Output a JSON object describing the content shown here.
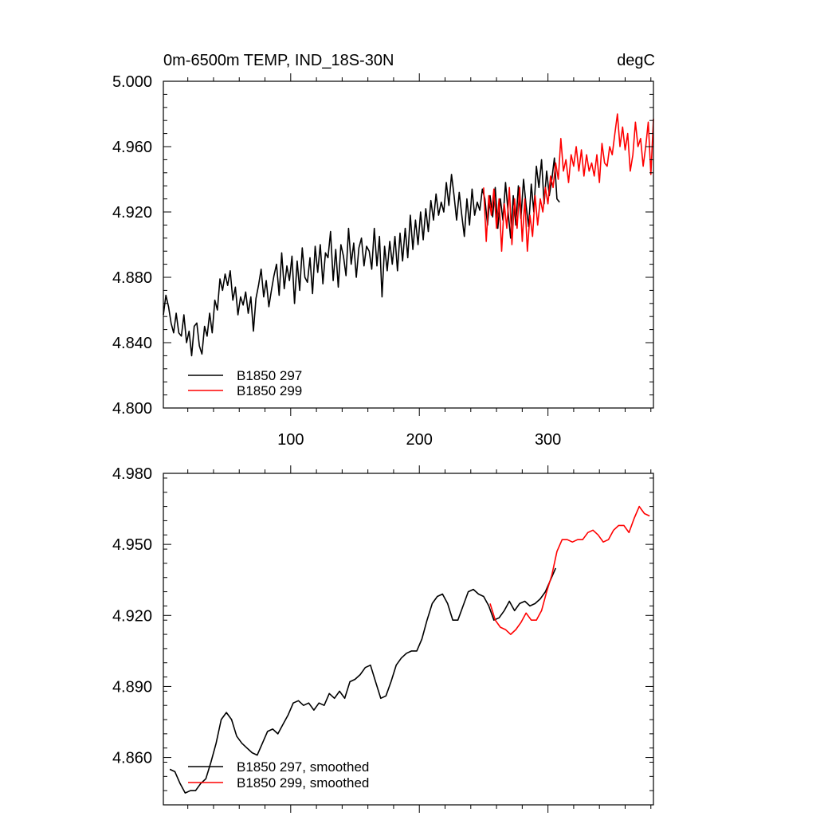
{
  "colors": {
    "run297": "#000000",
    "run299": "#ff0000"
  },
  "chart_data": [
    {
      "type": "line",
      "title": "0m-6500m TEMP, IND_18S-30N",
      "units": "degC",
      "xlim": [
        1,
        382
      ],
      "ylim": [
        4.8,
        5.0
      ],
      "xticks": [
        100,
        200,
        300
      ],
      "xtick_labels": [
        "100",
        "200",
        "300"
      ],
      "yticks": [
        4.8,
        4.84,
        4.88,
        4.92,
        4.96,
        5.0
      ],
      "ytick_labels": [
        "4.800",
        "4.840",
        "4.880",
        "4.920",
        "4.960",
        "5.000"
      ],
      "legend": {
        "position": "bottom-left",
        "entries": [
          "B1850 297",
          "B1850 299"
        ]
      },
      "series": [
        {
          "name": "B1850 297",
          "color": "#000000",
          "x": [
            1,
            3,
            5,
            7,
            9,
            11,
            13,
            15,
            17,
            19,
            21,
            23,
            25,
            27,
            29,
            31,
            33,
            35,
            37,
            39,
            41,
            43,
            45,
            47,
            49,
            51,
            53,
            55,
            57,
            59,
            61,
            63,
            65,
            67,
            69,
            71,
            73,
            75,
            77,
            79,
            81,
            83,
            85,
            87,
            89,
            91,
            93,
            95,
            97,
            99,
            101,
            103,
            105,
            107,
            109,
            111,
            113,
            115,
            117,
            119,
            121,
            123,
            125,
            127,
            129,
            131,
            133,
            135,
            137,
            139,
            141,
            143,
            145,
            147,
            149,
            151,
            153,
            155,
            157,
            159,
            161,
            163,
            165,
            167,
            169,
            171,
            173,
            175,
            177,
            179,
            181,
            183,
            185,
            187,
            189,
            191,
            193,
            195,
            197,
            199,
            201,
            203,
            205,
            207,
            209,
            211,
            213,
            215,
            217,
            219,
            221,
            223,
            225,
            227,
            229,
            231,
            233,
            235,
            237,
            239,
            241,
            243,
            245,
            247,
            249,
            251,
            253,
            255,
            257,
            259,
            261,
            263,
            265,
            267,
            269,
            271,
            273,
            275,
            277,
            279,
            281,
            283,
            285,
            287,
            289,
            291,
            293,
            295,
            297,
            299,
            301,
            303,
            305,
            307,
            309
          ],
          "values": [
            4.857,
            4.869,
            4.862,
            4.852,
            4.846,
            4.858,
            4.846,
            4.844,
            4.857,
            4.84,
            4.847,
            4.832,
            4.85,
            4.852,
            4.838,
            4.833,
            4.85,
            4.844,
            4.858,
            4.846,
            4.866,
            4.86,
            4.879,
            4.872,
            4.882,
            4.875,
            4.884,
            4.866,
            4.874,
            4.857,
            4.868,
            4.863,
            4.871,
            4.858,
            4.868,
            4.847,
            4.867,
            4.875,
            4.885,
            4.868,
            4.878,
            4.862,
            4.872,
            4.881,
            4.888,
            4.869,
            4.895,
            4.873,
            4.887,
            4.878,
            4.893,
            4.864,
            4.89,
            4.872,
            4.898,
            4.88,
            4.877,
            4.892,
            4.87,
            4.899,
            4.883,
            4.9,
            4.876,
            4.895,
            4.892,
            4.908,
            4.878,
            4.897,
            4.874,
            4.9,
            4.893,
            4.881,
            4.91,
            4.888,
            4.901,
            4.88,
            4.898,
            4.904,
            4.887,
            4.899,
            4.896,
            4.885,
            4.91,
            4.887,
            4.905,
            4.868,
            4.899,
            4.884,
            4.902,
            4.888,
            4.905,
            4.884,
            4.907,
            4.89,
            4.91,
            4.892,
            4.918,
            4.897,
            4.915,
            4.9,
            4.92,
            4.903,
            4.922,
            4.908,
            4.927,
            4.915,
            4.931,
            4.918,
            4.926,
            4.92,
            4.938,
            4.924,
            4.943,
            4.93,
            4.915,
            4.932,
            4.918,
            4.905,
            4.928,
            4.912,
            4.934,
            4.918,
            4.926,
            4.921,
            4.934,
            4.928,
            4.912,
            4.93,
            4.917,
            4.935,
            4.91,
            4.928,
            4.915,
            4.938,
            4.92,
            4.904,
            4.93,
            4.912,
            4.936,
            4.916,
            4.94,
            4.924,
            4.911,
            4.937,
            4.92,
            4.948,
            4.935,
            4.952,
            4.925,
            4.945,
            4.93,
            4.94,
            4.953,
            4.928,
            4.926
          ],
          "values_note": ""
        },
        {
          "name": "B1850 299",
          "color": "#ff0000",
          "x": [
            250,
            252,
            254,
            256,
            258,
            260,
            262,
            264,
            266,
            268,
            270,
            272,
            274,
            276,
            278,
            280,
            282,
            284,
            286,
            288,
            290,
            292,
            294,
            296,
            298,
            300,
            302,
            304,
            306,
            308,
            310,
            312,
            314,
            316,
            318,
            320,
            322,
            324,
            326,
            328,
            330,
            332,
            334,
            336,
            338,
            340,
            342,
            344,
            346,
            348,
            350,
            352,
            354,
            356,
            358,
            360,
            362,
            364,
            366,
            368,
            370,
            372,
            374,
            376,
            378,
            380,
            382
          ],
          "values": [
            4.935,
            4.902,
            4.93,
            4.918,
            4.934,
            4.91,
            4.928,
            4.896,
            4.925,
            4.91,
            4.935,
            4.9,
            4.928,
            4.91,
            4.935,
            4.902,
            4.928,
            4.896,
            4.918,
            4.905,
            4.93,
            4.912,
            4.928,
            4.92,
            4.935,
            4.925,
            4.942,
            4.935,
            4.95,
            4.94,
            4.965,
            4.945,
            4.952,
            4.938,
            4.955,
            4.948,
            4.96,
            4.945,
            4.958,
            4.942,
            4.955,
            4.945,
            4.95,
            4.942,
            4.955,
            4.938,
            4.962,
            4.95,
            4.948,
            4.96,
            4.955,
            4.968,
            4.98,
            4.96,
            4.972,
            4.958,
            4.968,
            4.945,
            4.955,
            4.975,
            4.96,
            4.965,
            4.948,
            4.96,
            4.975,
            4.943,
            4.977
          ],
          "values_note": ""
        }
      ]
    },
    {
      "type": "line",
      "title": "",
      "xlim": [
        1,
        382
      ],
      "ylim": [
        4.84,
        4.98
      ],
      "xticks": [
        100,
        200,
        300
      ],
      "yticks": [
        4.86,
        4.89,
        4.92,
        4.95,
        4.98
      ],
      "ytick_labels": [
        "4.860",
        "4.890",
        "4.920",
        "4.950",
        "4.980"
      ],
      "legend": {
        "position": "bottom-left",
        "entries": [
          "B1850 297, smoothed",
          "B1850 299, smoothed"
        ]
      },
      "series": [
        {
          "name": "B1850 297, smoothed",
          "color": "#000000",
          "x": [
            6,
            10,
            14,
            18,
            22,
            26,
            30,
            34,
            38,
            42,
            46,
            50,
            54,
            58,
            62,
            66,
            70,
            74,
            78,
            82,
            86,
            90,
            94,
            98,
            102,
            106,
            110,
            114,
            118,
            122,
            126,
            130,
            134,
            138,
            142,
            146,
            150,
            154,
            158,
            162,
            166,
            170,
            174,
            178,
            182,
            186,
            190,
            194,
            198,
            202,
            206,
            210,
            214,
            218,
            222,
            226,
            230,
            234,
            238,
            242,
            246,
            250,
            254,
            258,
            262,
            266,
            270,
            274,
            278,
            282,
            286,
            290,
            294,
            298,
            302,
            306
          ],
          "values": [
            4.855,
            4.854,
            4.849,
            4.845,
            4.846,
            4.846,
            4.849,
            4.851,
            4.858,
            4.866,
            4.876,
            4.879,
            4.876,
            4.869,
            4.866,
            4.864,
            4.862,
            4.861,
            4.866,
            4.871,
            4.872,
            4.87,
            4.874,
            4.878,
            4.883,
            4.884,
            4.882,
            4.883,
            4.88,
            4.883,
            4.882,
            4.887,
            4.885,
            4.888,
            4.885,
            4.892,
            4.893,
            4.895,
            4.898,
            4.899,
            4.892,
            4.885,
            4.886,
            4.892,
            4.899,
            4.902,
            4.904,
            4.905,
            4.905,
            4.91,
            4.918,
            4.925,
            4.928,
            4.929,
            4.925,
            4.918,
            4.918,
            4.924,
            4.93,
            4.931,
            4.929,
            4.928,
            4.924,
            4.918,
            4.919,
            4.922,
            4.926,
            4.922,
            4.925,
            4.926,
            4.924,
            4.925,
            4.927,
            4.93,
            4.935,
            4.94
          ],
          "values_note": ""
        },
        {
          "name": "B1850 299, smoothed",
          "color": "#ff0000",
          "x": [
            255,
            259,
            263,
            267,
            271,
            275,
            279,
            283,
            287,
            291,
            295,
            299,
            303,
            307,
            311,
            315,
            319,
            323,
            327,
            331,
            335,
            339,
            343,
            347,
            351,
            355,
            359,
            363,
            367,
            371,
            375,
            379
          ],
          "values": [
            4.925,
            4.918,
            4.915,
            4.914,
            4.912,
            4.914,
            4.917,
            4.921,
            4.918,
            4.918,
            4.922,
            4.93,
            4.937,
            4.947,
            4.952,
            4.952,
            4.951,
            4.952,
            4.952,
            4.955,
            4.956,
            4.954,
            4.951,
            4.952,
            4.956,
            4.958,
            4.958,
            4.955,
            4.961,
            4.966,
            4.963,
            4.962
          ],
          "values_note": ""
        }
      ]
    }
  ]
}
